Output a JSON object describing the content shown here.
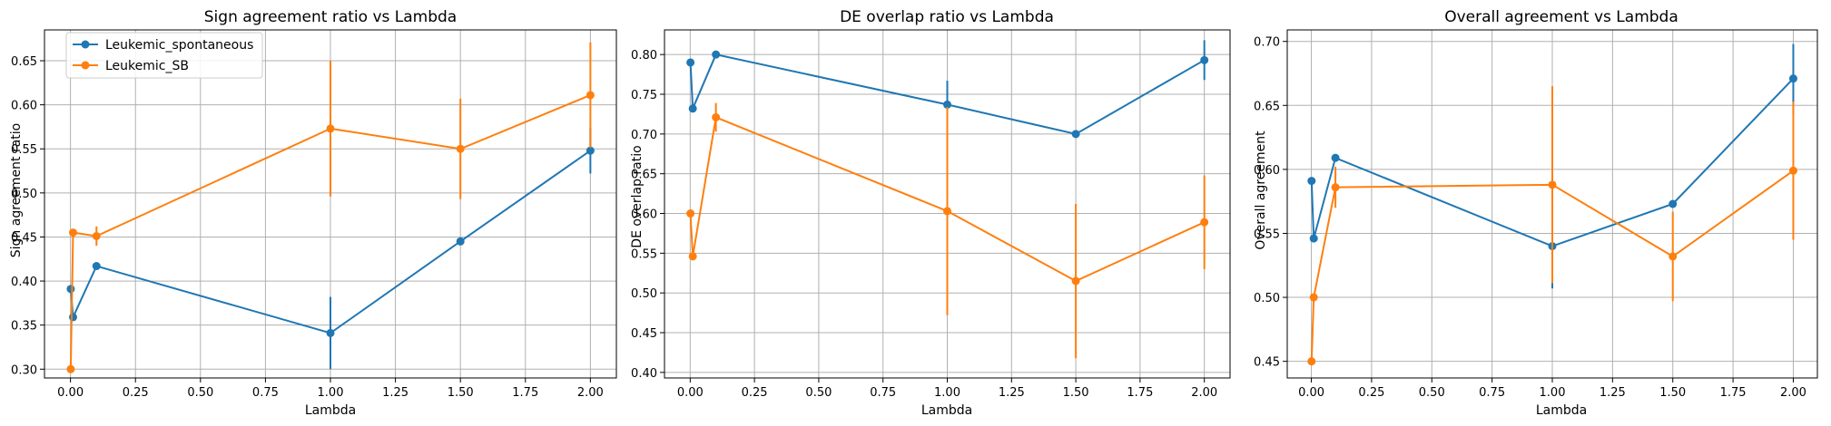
{
  "colors": {
    "series_1": "#1f77b4",
    "series_2": "#ff7f0e",
    "grid": "#b0b0b0"
  },
  "chart_data": [
    {
      "type": "line",
      "title": "Sign agreement ratio vs Lambda",
      "xlabel": "Lambda",
      "ylabel": "Sign agreement ratio",
      "xlim": [
        -0.1,
        2.1
      ],
      "ylim": [
        0.29,
        0.685
      ],
      "xticks": [
        "0.00",
        "0.25",
        "0.50",
        "0.75",
        "1.00",
        "1.25",
        "1.50",
        "1.75",
        "2.00"
      ],
      "yticks": [
        "0.30",
        "0.35",
        "0.40",
        "0.45",
        "0.50",
        "0.55",
        "0.60",
        "0.65"
      ],
      "grid": true,
      "legend": "top-left",
      "series": [
        {
          "name": "Leukemic_spontaneous",
          "color": "#1f77b4",
          "x": [
            0.001,
            0.01,
            0.1,
            1.0,
            1.5,
            2.0
          ],
          "y": [
            0.391,
            0.359,
            0.417,
            0.341,
            0.445,
            0.548
          ],
          "err": [
            0.0,
            0.0,
            0.0,
            0.041,
            0.0,
            0.026
          ]
        },
        {
          "name": "Leukemic_SB",
          "color": "#ff7f0e",
          "x": [
            0.001,
            0.01,
            0.1,
            1.0,
            1.5,
            2.0
          ],
          "y": [
            0.3,
            0.455,
            0.451,
            0.573,
            0.55,
            0.611
          ],
          "err": [
            0.0,
            0.0,
            0.011,
            0.077,
            0.057,
            0.06
          ]
        }
      ]
    },
    {
      "type": "line",
      "title": "DE overlap ratio vs Lambda",
      "xlabel": "Lambda",
      "ylabel": "DE overlap ratio",
      "xlim": [
        -0.1,
        2.1
      ],
      "ylim": [
        0.393,
        0.831
      ],
      "xticks": [
        "0.00",
        "0.25",
        "0.50",
        "0.75",
        "1.00",
        "1.25",
        "1.50",
        "1.75",
        "2.00"
      ],
      "yticks": [
        "0.40",
        "0.45",
        "0.50",
        "0.55",
        "0.60",
        "0.65",
        "0.70",
        "0.75",
        "0.80"
      ],
      "grid": true,
      "legend": "none",
      "series": [
        {
          "color": "#1f77b4",
          "x": [
            0.001,
            0.01,
            0.1,
            1.0,
            1.5,
            2.0
          ],
          "y": [
            0.79,
            0.732,
            0.8,
            0.737,
            0.7,
            0.793
          ],
          "err": [
            0.0,
            0.0,
            0.0,
            0.03,
            0.0,
            0.025
          ]
        },
        {
          "color": "#ff7f0e",
          "x": [
            0.001,
            0.01,
            0.1,
            1.0,
            1.5,
            2.0
          ],
          "y": [
            0.6,
            0.546,
            0.721,
            0.603,
            0.515,
            0.589
          ],
          "err": [
            0.0,
            0.0,
            0.018,
            0.131,
            0.097,
            0.059
          ]
        }
      ]
    },
    {
      "type": "line",
      "title": "Overall agreement vs Lambda",
      "xlabel": "Lambda",
      "ylabel": "Overall agreement",
      "xlim": [
        -0.1,
        2.1
      ],
      "ylim": [
        0.437,
        0.709
      ],
      "xticks": [
        "0.00",
        "0.25",
        "0.50",
        "0.75",
        "1.00",
        "1.25",
        "1.50",
        "1.75",
        "2.00"
      ],
      "yticks": [
        "0.45",
        "0.50",
        "0.55",
        "0.60",
        "0.65",
        "0.70"
      ],
      "grid": true,
      "legend": "none",
      "series": [
        {
          "color": "#1f77b4",
          "x": [
            0.001,
            0.01,
            0.1,
            1.0,
            1.5,
            2.0
          ],
          "y": [
            0.591,
            0.546,
            0.609,
            0.54,
            0.573,
            0.671
          ],
          "err": [
            0.0,
            0.0,
            0.0,
            0.033,
            0.0,
            0.027
          ]
        },
        {
          "color": "#ff7f0e",
          "x": [
            0.001,
            0.01,
            0.1,
            1.0,
            1.5,
            2.0
          ],
          "y": [
            0.45,
            0.5,
            0.586,
            0.588,
            0.532,
            0.599
          ],
          "err": [
            0.0,
            0.0,
            0.016,
            0.077,
            0.035,
            0.054
          ]
        }
      ]
    }
  ]
}
